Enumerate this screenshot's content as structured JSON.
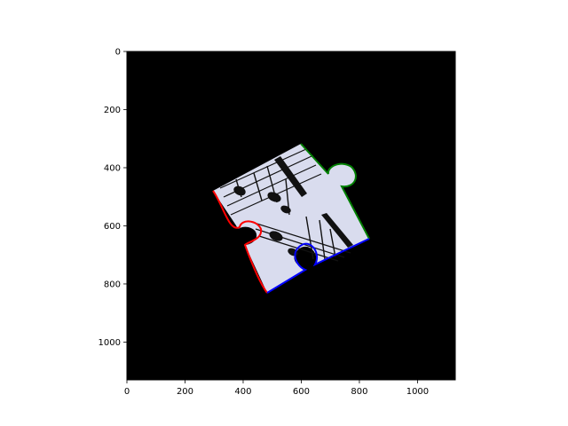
{
  "chart_data": {
    "type": "image",
    "title": "",
    "xlabel": "",
    "ylabel": "",
    "xlim": [
      0,
      1130
    ],
    "ylim": [
      1130,
      0
    ],
    "y_axis_inverted": true,
    "grid": false,
    "legend": "none",
    "x_ticks": [
      0,
      200,
      400,
      600,
      800,
      1000
    ],
    "y_ticks": [
      0,
      200,
      400,
      600,
      800,
      1000
    ],
    "x_tick_labels": [
      "0",
      "200",
      "400",
      "600",
      "800",
      "1000"
    ],
    "y_tick_labels": [
      "0",
      "200",
      "400",
      "600",
      "800",
      "1000"
    ],
    "image_description": "rotated jigsaw puzzle piece showing sheet music on black background",
    "background_color": "#000000",
    "piece_fill_color": "#dcdff2",
    "edge_highlights": [
      {
        "color": "#ff0000",
        "side": "left"
      },
      {
        "color": "#008000",
        "side": "right"
      },
      {
        "color": "#0000ff",
        "side": "bottom"
      }
    ]
  }
}
